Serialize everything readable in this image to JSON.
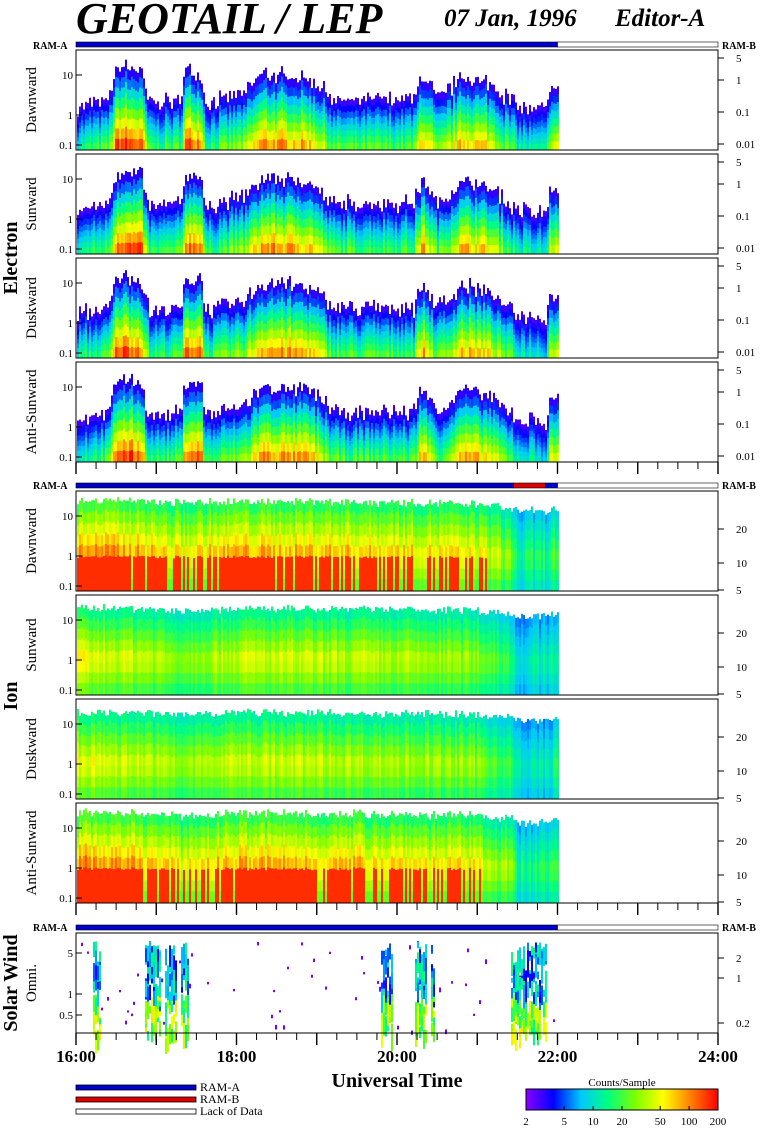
{
  "header": {
    "title": "GEOTAIL / LEP",
    "date": "07 Jan, 1996",
    "editor": "Editor-A"
  },
  "mode_labels": {
    "ram_a": "RAM-A",
    "ram_b": "RAM-B"
  },
  "groups": {
    "electron": "Electron",
    "ion": "Ion",
    "solar_wind": "Solar Wind"
  },
  "panels": [
    {
      "label": "Dawnward",
      "group": "electron",
      "left_ticks": [
        "10",
        "1",
        "0.1"
      ],
      "right_ticks": [
        "5",
        "1",
        "0.1",
        "0.01"
      ]
    },
    {
      "label": "Sunward",
      "group": "electron",
      "left_ticks": [
        "10",
        "1",
        "0.1"
      ],
      "right_ticks": [
        "5",
        "1",
        "0.1",
        "0.01"
      ]
    },
    {
      "label": "Duskward",
      "group": "electron",
      "left_ticks": [
        "10",
        "1",
        "0.1"
      ],
      "right_ticks": [
        "5",
        "1",
        "0.1",
        "0.01"
      ]
    },
    {
      "label": "Anti-Sunward",
      "group": "electron",
      "left_ticks": [
        "10",
        "1",
        "0.1"
      ],
      "right_ticks": [
        "5",
        "1",
        "0.1",
        "0.01"
      ]
    },
    {
      "label": "Dawnward",
      "group": "ion",
      "left_ticks": [
        "10",
        "1",
        "0.1"
      ],
      "right_ticks": [
        "20",
        "10",
        "5"
      ]
    },
    {
      "label": "Sunward",
      "group": "ion",
      "left_ticks": [
        "10",
        "1",
        "0.1"
      ],
      "right_ticks": [
        "20",
        "10",
        "5"
      ]
    },
    {
      "label": "Duskward",
      "group": "ion",
      "left_ticks": [
        "10",
        "1",
        "0.1"
      ],
      "right_ticks": [
        "20",
        "10",
        "5"
      ]
    },
    {
      "label": "Anti-Sunward",
      "group": "ion",
      "left_ticks": [
        "10",
        "1",
        "0.1"
      ],
      "right_ticks": [
        "20",
        "10",
        "5"
      ]
    },
    {
      "label": "Omni.",
      "group": "solar_wind",
      "left_ticks": [
        "5",
        "1",
        "0.5"
      ],
      "right_ticks": [
        "2",
        "1",
        "0.2"
      ]
    }
  ],
  "chart_data": {
    "type": "heatmap",
    "title": "GEOTAIL / LEP",
    "xlabel": "Universal Time",
    "x_ticks": [
      "16:00",
      "18:00",
      "20:00",
      "22:00",
      "24:00"
    ],
    "x_range_hours": [
      16,
      24
    ],
    "data_end_hours": 22.0,
    "y_scale": "log",
    "mode_bars": [
      {
        "section": "electron",
        "segments": [
          {
            "from": 16.0,
            "to": 22.0,
            "mode": "RAM-A"
          },
          {
            "from": 22.0,
            "to": 24.0,
            "mode": "Lack of Data"
          }
        ]
      },
      {
        "section": "ion",
        "segments": [
          {
            "from": 16.0,
            "to": 21.45,
            "mode": "RAM-A"
          },
          {
            "from": 21.45,
            "to": 21.85,
            "mode": "RAM-B"
          },
          {
            "from": 21.85,
            "to": 22.0,
            "mode": "RAM-A"
          },
          {
            "from": 22.0,
            "to": 24.0,
            "mode": "Lack of Data"
          }
        ]
      },
      {
        "section": "solar_wind",
        "segments": [
          {
            "from": 16.0,
            "to": 22.0,
            "mode": "RAM-A"
          },
          {
            "from": 22.0,
            "to": 24.0,
            "mode": "Lack of Data"
          }
        ]
      }
    ],
    "electron_intensity_profile": [
      [
        16.0,
        0.35
      ],
      [
        16.4,
        0.45
      ],
      [
        16.5,
        0.9
      ],
      [
        16.8,
        0.85
      ],
      [
        16.9,
        0.4
      ],
      [
        17.3,
        0.45
      ],
      [
        17.35,
        0.85
      ],
      [
        17.55,
        0.85
      ],
      [
        17.6,
        0.4
      ],
      [
        18.1,
        0.55
      ],
      [
        18.3,
        0.8
      ],
      [
        18.9,
        0.75
      ],
      [
        19.2,
        0.45
      ],
      [
        20.2,
        0.45
      ],
      [
        20.3,
        0.8
      ],
      [
        20.5,
        0.45
      ],
      [
        20.8,
        0.75
      ],
      [
        21.1,
        0.7
      ],
      [
        21.5,
        0.35
      ],
      [
        21.85,
        0.3
      ],
      [
        21.9,
        0.65
      ],
      [
        22.0,
        0.6
      ]
    ],
    "ion_intensity_profile": [
      [
        16.0,
        0.85
      ],
      [
        16.8,
        0.8
      ],
      [
        17.3,
        0.7
      ],
      [
        17.6,
        0.75
      ],
      [
        18.0,
        0.8
      ],
      [
        19.0,
        0.78
      ],
      [
        20.0,
        0.75
      ],
      [
        21.0,
        0.7
      ],
      [
        21.4,
        0.55
      ],
      [
        21.5,
        0.35
      ],
      [
        21.85,
        0.4
      ],
      [
        22.0,
        0.5
      ]
    ],
    "solar_wind_bursts": [
      [
        16.2,
        16.3
      ],
      [
        16.85,
        17.05
      ],
      [
        17.1,
        17.25
      ],
      [
        17.3,
        17.4
      ],
      [
        19.8,
        19.95
      ],
      [
        20.2,
        20.35
      ],
      [
        20.4,
        20.45
      ],
      [
        21.4,
        21.85
      ]
    ]
  },
  "legend": {
    "items": [
      {
        "label": "RAM-A",
        "color": "#0000cc"
      },
      {
        "label": "RAM-B",
        "color": "#dd0000"
      },
      {
        "label": "Lack of Data",
        "color": "#ffffff"
      }
    ]
  },
  "colorbar": {
    "title": "Counts/Sample",
    "ticks": [
      "2",
      "5",
      "10",
      "20",
      "50",
      "100",
      "200"
    ],
    "tick_values": [
      2,
      5,
      10,
      20,
      50,
      100,
      200
    ],
    "range": [
      2,
      200
    ],
    "colors": [
      "#8a00ff",
      "#0000ff",
      "#00c8ff",
      "#00ff80",
      "#80ff00",
      "#ffff00",
      "#ff8000",
      "#ff0000"
    ]
  }
}
